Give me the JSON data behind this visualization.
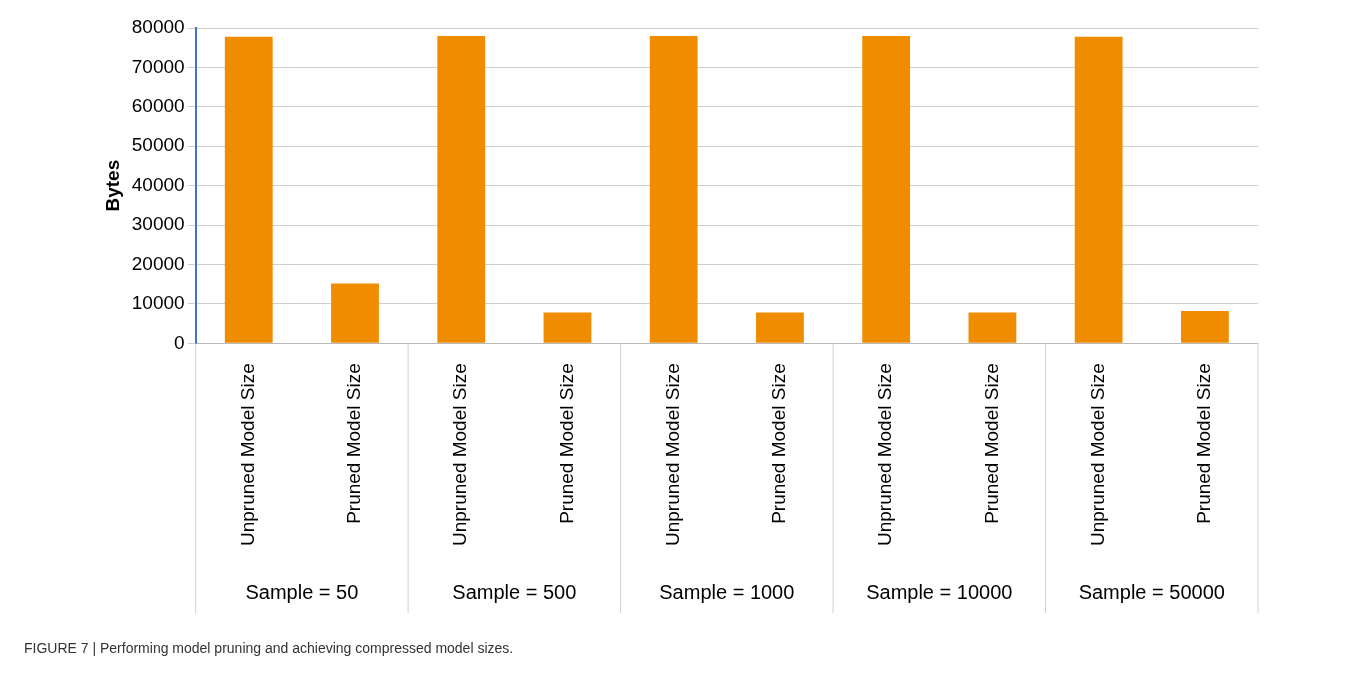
{
  "chart_data": {
    "type": "bar",
    "ylabel": "Bytes",
    "categories": [
      "Unpruned Model Size",
      "Pruned Model Size",
      "Unpruned Model Size",
      "Pruned Model Size",
      "Unpruned Model Size",
      "Pruned Model Size",
      "Unpruned Model Size",
      "Pruned Model Size",
      "Unpruned Model Size",
      "Pruned Model Size"
    ],
    "values": [
      77800,
      15200,
      78000,
      7800,
      78000,
      7800,
      78000,
      7800,
      77800,
      8200
    ],
    "color": "#f08c00",
    "ylim": [
      0,
      80000
    ],
    "yticks": [
      0,
      10000,
      20000,
      30000,
      40000,
      50000,
      60000,
      70000,
      80000
    ],
    "grid": "y",
    "legend": false,
    "annotations": [
      "Sample = 50",
      "Sample = 500",
      "Sample = 1000",
      "Sample = 10000",
      "Sample = 50000",
      "FIGURE 7 | Performing model pruning and achieving compressed model sizes."
    ]
  }
}
